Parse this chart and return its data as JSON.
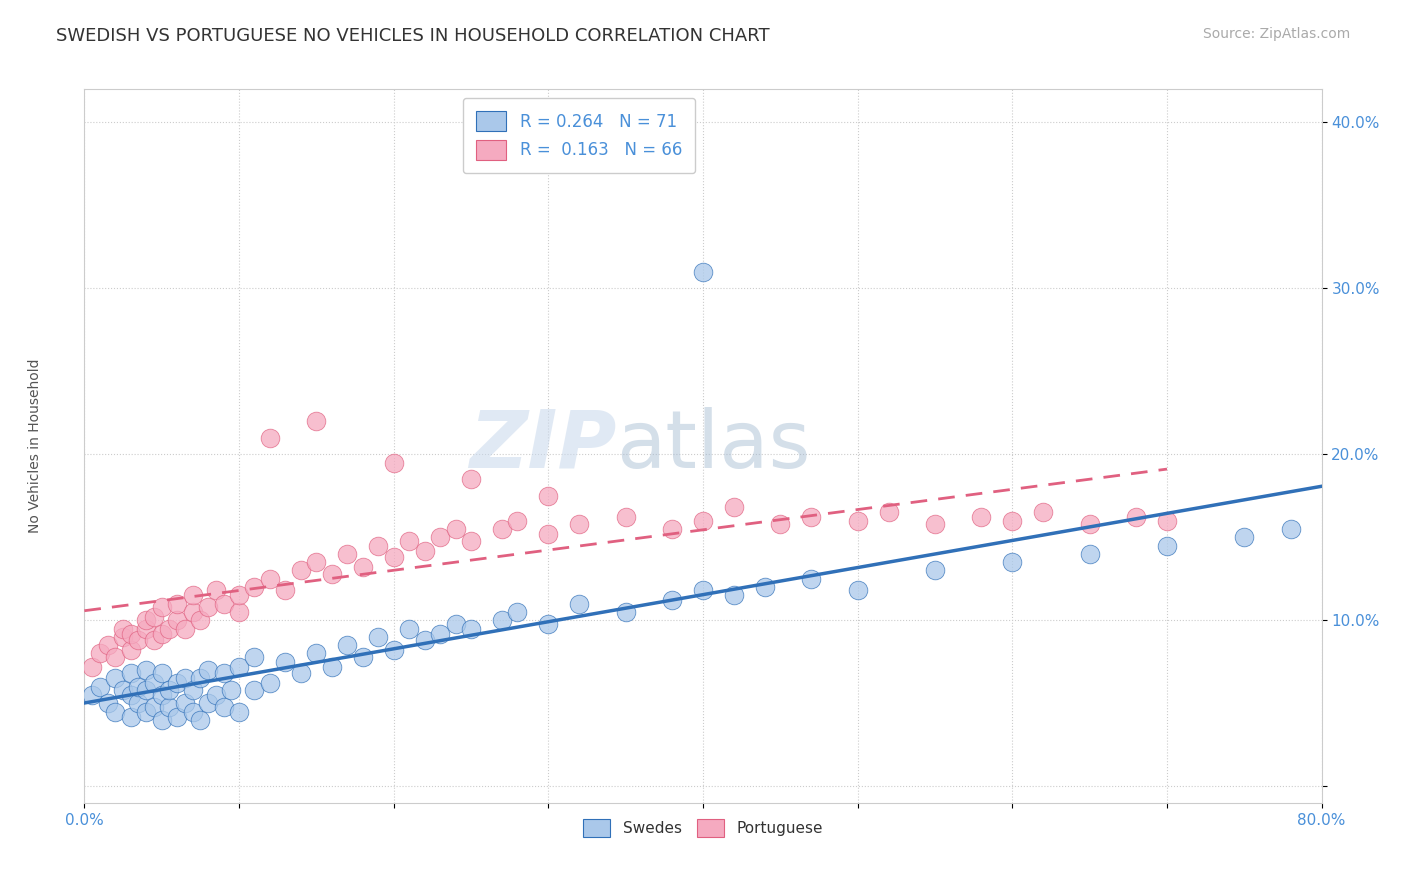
{
  "title": "SWEDISH VS PORTUGUESE NO VEHICLES IN HOUSEHOLD CORRELATION CHART",
  "source": "Source: ZipAtlas.com",
  "ylabel": "No Vehicles in Household",
  "xlim": [
    0.0,
    0.8
  ],
  "ylim": [
    -0.01,
    0.42
  ],
  "xticks": [
    0.0,
    0.1,
    0.2,
    0.3,
    0.4,
    0.5,
    0.6,
    0.7,
    0.8
  ],
  "yticks": [
    0.0,
    0.1,
    0.2,
    0.3,
    0.4
  ],
  "swedish_color": "#aac8ea",
  "portuguese_color": "#f5aac0",
  "swedish_line_color": "#3070b8",
  "portuguese_line_color": "#e06080",
  "swedish_R": 0.264,
  "swedish_N": 71,
  "portuguese_R": 0.163,
  "portuguese_N": 66,
  "legend_swedes": "Swedes",
  "legend_portuguese": "Portuguese",
  "watermark_zip": "ZIP",
  "watermark_atlas": "atlas",
  "title_fontsize": 13,
  "axis_label_fontsize": 10,
  "tick_fontsize": 11,
  "source_fontsize": 10,
  "swedish_x": [
    0.005,
    0.01,
    0.015,
    0.02,
    0.02,
    0.025,
    0.03,
    0.03,
    0.03,
    0.035,
    0.035,
    0.04,
    0.04,
    0.04,
    0.045,
    0.045,
    0.05,
    0.05,
    0.05,
    0.055,
    0.055,
    0.06,
    0.06,
    0.065,
    0.065,
    0.07,
    0.07,
    0.075,
    0.075,
    0.08,
    0.08,
    0.085,
    0.09,
    0.09,
    0.095,
    0.1,
    0.1,
    0.11,
    0.11,
    0.12,
    0.13,
    0.14,
    0.15,
    0.16,
    0.17,
    0.18,
    0.19,
    0.2,
    0.21,
    0.22,
    0.23,
    0.24,
    0.25,
    0.27,
    0.28,
    0.3,
    0.32,
    0.35,
    0.38,
    0.4,
    0.42,
    0.44,
    0.47,
    0.5,
    0.55,
    0.6,
    0.65,
    0.7,
    0.75,
    0.78,
    0.4
  ],
  "swedish_y": [
    0.055,
    0.06,
    0.05,
    0.045,
    0.065,
    0.058,
    0.042,
    0.055,
    0.068,
    0.05,
    0.06,
    0.045,
    0.058,
    0.07,
    0.048,
    0.062,
    0.04,
    0.055,
    0.068,
    0.048,
    0.058,
    0.042,
    0.062,
    0.05,
    0.065,
    0.045,
    0.058,
    0.04,
    0.065,
    0.05,
    0.07,
    0.055,
    0.048,
    0.068,
    0.058,
    0.045,
    0.072,
    0.058,
    0.078,
    0.062,
    0.075,
    0.068,
    0.08,
    0.072,
    0.085,
    0.078,
    0.09,
    0.082,
    0.095,
    0.088,
    0.092,
    0.098,
    0.095,
    0.1,
    0.105,
    0.098,
    0.11,
    0.105,
    0.112,
    0.118,
    0.115,
    0.12,
    0.125,
    0.118,
    0.13,
    0.135,
    0.14,
    0.145,
    0.15,
    0.155,
    0.31
  ],
  "portuguese_x": [
    0.005,
    0.01,
    0.015,
    0.02,
    0.025,
    0.025,
    0.03,
    0.03,
    0.035,
    0.04,
    0.04,
    0.045,
    0.045,
    0.05,
    0.05,
    0.055,
    0.06,
    0.06,
    0.065,
    0.07,
    0.07,
    0.075,
    0.08,
    0.085,
    0.09,
    0.1,
    0.1,
    0.11,
    0.12,
    0.13,
    0.14,
    0.15,
    0.16,
    0.17,
    0.18,
    0.19,
    0.2,
    0.21,
    0.22,
    0.23,
    0.24,
    0.25,
    0.27,
    0.28,
    0.3,
    0.32,
    0.35,
    0.38,
    0.4,
    0.42,
    0.45,
    0.47,
    0.5,
    0.52,
    0.55,
    0.58,
    0.6,
    0.62,
    0.65,
    0.68,
    0.7,
    0.12,
    0.15,
    0.2,
    0.25,
    0.3
  ],
  "portuguese_y": [
    0.072,
    0.08,
    0.085,
    0.078,
    0.09,
    0.095,
    0.082,
    0.092,
    0.088,
    0.095,
    0.1,
    0.088,
    0.102,
    0.092,
    0.108,
    0.095,
    0.1,
    0.11,
    0.095,
    0.105,
    0.115,
    0.1,
    0.108,
    0.118,
    0.11,
    0.105,
    0.115,
    0.12,
    0.125,
    0.118,
    0.13,
    0.135,
    0.128,
    0.14,
    0.132,
    0.145,
    0.138,
    0.148,
    0.142,
    0.15,
    0.155,
    0.148,
    0.155,
    0.16,
    0.152,
    0.158,
    0.162,
    0.155,
    0.16,
    0.168,
    0.158,
    0.162,
    0.16,
    0.165,
    0.158,
    0.162,
    0.16,
    0.165,
    0.158,
    0.162,
    0.16,
    0.21,
    0.22,
    0.195,
    0.185,
    0.175
  ]
}
